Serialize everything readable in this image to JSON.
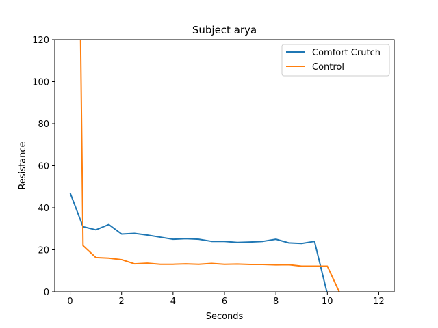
{
  "chart_data": {
    "type": "line",
    "title": "Subject arya",
    "xlabel": "Seconds",
    "ylabel": "Resistance",
    "xlim": [
      -0.6,
      12.6
    ],
    "ylim": [
      0,
      120
    ],
    "xticks": [
      0,
      2,
      4,
      6,
      8,
      10,
      12
    ],
    "yticks": [
      0,
      20,
      40,
      60,
      80,
      100,
      120
    ],
    "grid": false,
    "legend_position": "top-right",
    "series": [
      {
        "name": "Comfort Crutch",
        "color": "#1f77b4",
        "x": [
          0,
          0.5,
          1,
          1.5,
          2,
          2.5,
          3,
          3.5,
          4,
          4.5,
          5,
          5.5,
          6,
          6.5,
          7,
          7.5,
          8,
          8.5,
          9,
          9.5,
          10
        ],
        "y": [
          47,
          31,
          29.5,
          32,
          27.5,
          27.8,
          27,
          26,
          25,
          25.3,
          25,
          24,
          24,
          23.5,
          23.7,
          24,
          25,
          23.3,
          23,
          24,
          -1
        ]
      },
      {
        "name": "Control",
        "color": "#ff7f0e",
        "x": [
          0.4,
          0.5,
          1,
          1.5,
          2,
          2.5,
          3,
          3.5,
          4,
          4.5,
          5,
          5.5,
          6,
          6.5,
          7,
          7.5,
          8,
          8.5,
          9,
          9.5,
          10,
          10.5,
          11,
          11.5,
          12
        ],
        "y": [
          125,
          22,
          16.3,
          16,
          15.3,
          13.3,
          13.6,
          13.1,
          13.1,
          13.3,
          13.1,
          13.5,
          13.1,
          13.2,
          13,
          13,
          12.8,
          12.9,
          12.2,
          12.2,
          12.2,
          -1,
          -1,
          -1,
          -1
        ]
      }
    ]
  }
}
